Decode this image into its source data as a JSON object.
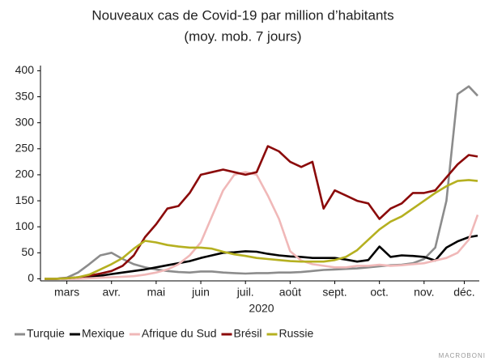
{
  "chart_data": {
    "type": "line",
    "title": "Nouveaux cas de Covid-19 par million d’habitants",
    "subtitle": "(moy. mob. 7 jours)",
    "x_label": "2020",
    "watermark": "MACROBONI",
    "x": [
      3,
      3.25,
      3.5,
      3.75,
      4,
      4.25,
      4.5,
      4.75,
      5,
      5.25,
      5.5,
      5.75,
      6,
      6.25,
      6.5,
      6.75,
      7,
      7.25,
      7.5,
      7.75,
      8,
      8.25,
      8.5,
      8.75,
      9,
      9.25,
      9.5,
      9.75,
      10,
      10.25,
      10.5,
      10.75,
      11,
      11.25,
      11.5,
      11.75,
      12,
      12.25,
      12.5,
      12.7
    ],
    "xlim": [
      3,
      12.7
    ],
    "xticks": [
      {
        "value": 3.5,
        "label": "mars"
      },
      {
        "value": 4.5,
        "label": "avr."
      },
      {
        "value": 5.5,
        "label": "mai"
      },
      {
        "value": 6.5,
        "label": "juin"
      },
      {
        "value": 7.5,
        "label": "juil."
      },
      {
        "value": 8.5,
        "label": "août"
      },
      {
        "value": 9.5,
        "label": "sept."
      },
      {
        "value": 10.5,
        "label": "oct."
      },
      {
        "value": 11.5,
        "label": "nov."
      },
      {
        "value": 12.4,
        "label": "déc."
      }
    ],
    "ylim": [
      -4,
      410
    ],
    "yticks": [
      0,
      50,
      100,
      150,
      200,
      250,
      300,
      350,
      400
    ],
    "legend": "bottom",
    "series": [
      {
        "name": "Turquie",
        "color": "#8c8c8c",
        "values": [
          0,
          0,
          2,
          12,
          28,
          45,
          50,
          38,
          28,
          22,
          18,
          15,
          13,
          12,
          14,
          14,
          12,
          11,
          10,
          11,
          11,
          12,
          12,
          13,
          15,
          17,
          18,
          19,
          20,
          22,
          24,
          26,
          27,
          30,
          38,
          60,
          150,
          355,
          370,
          352
        ]
      },
      {
        "name": "Mexique",
        "color": "#000000",
        "values": [
          0,
          0,
          1,
          2,
          4,
          6,
          9,
          12,
          15,
          18,
          22,
          26,
          30,
          34,
          40,
          45,
          50,
          51,
          53,
          52,
          48,
          45,
          43,
          42,
          40,
          40,
          40,
          37,
          33,
          36,
          62,
          42,
          45,
          44,
          42,
          35,
          60,
          72,
          80,
          83
        ]
      },
      {
        "name": "Afrique du Sud",
        "color": "#f0b8b8",
        "values": [
          0,
          0,
          0,
          0,
          1,
          2,
          3,
          4,
          5,
          8,
          12,
          18,
          28,
          45,
          70,
          120,
          170,
          200,
          205,
          200,
          160,
          115,
          53,
          35,
          28,
          25,
          22,
          22,
          25,
          25,
          27,
          25,
          26,
          28,
          30,
          35,
          40,
          50,
          75,
          123
        ]
      },
      {
        "name": "Brésil",
        "color": "#8b0a0a",
        "values": [
          0,
          0,
          1,
          3,
          6,
          10,
          15,
          25,
          45,
          80,
          105,
          135,
          140,
          165,
          200,
          205,
          210,
          205,
          200,
          205,
          255,
          245,
          225,
          215,
          225,
          135,
          170,
          160,
          150,
          145,
          115,
          135,
          145,
          165,
          165,
          170,
          195,
          220,
          238,
          235
        ]
      },
      {
        "name": "Russie",
        "color": "#b5b020",
        "values": [
          0,
          0,
          1,
          3,
          8,
          18,
          28,
          40,
          58,
          73,
          70,
          65,
          62,
          60,
          60,
          58,
          52,
          47,
          44,
          40,
          38,
          36,
          34,
          33,
          33,
          33,
          36,
          42,
          55,
          75,
          95,
          110,
          120,
          135,
          150,
          165,
          178,
          188,
          190,
          188
        ]
      }
    ]
  }
}
